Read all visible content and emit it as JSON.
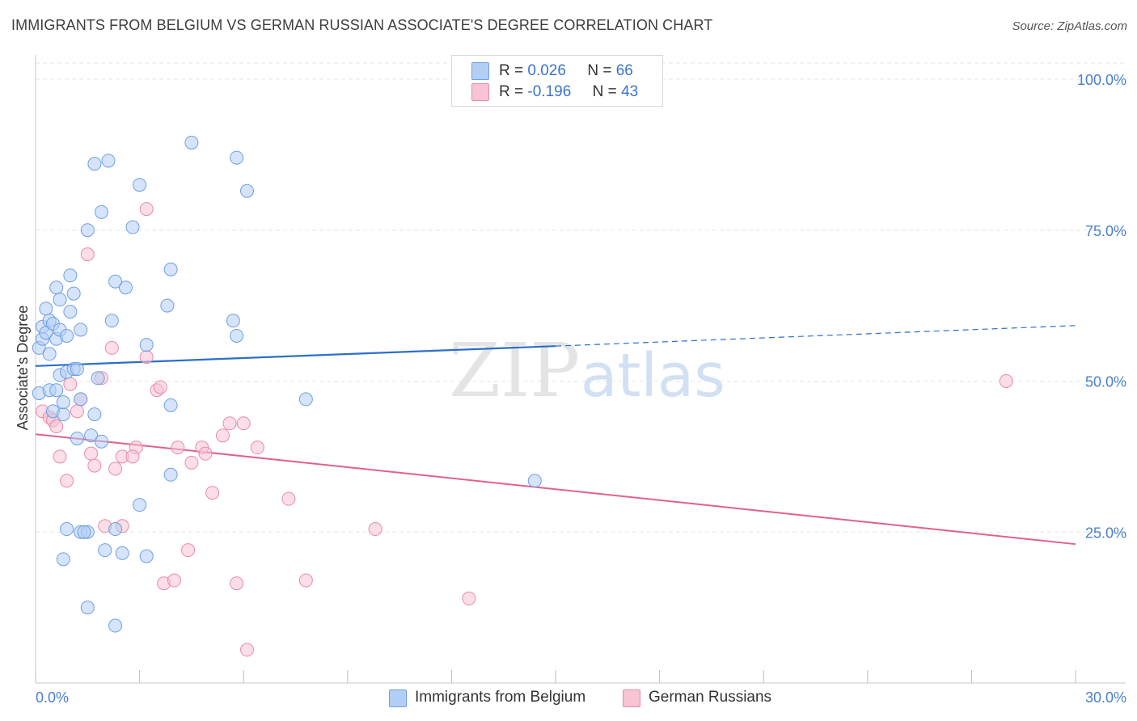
{
  "title": "IMMIGRANTS FROM BELGIUM VS GERMAN RUSSIAN ASSOCIATE'S DEGREE CORRELATION CHART",
  "source": "Source: ZipAtlas.com",
  "watermark": {
    "zip": "ZIP",
    "atlas": "atlas"
  },
  "colors": {
    "blue_fill": "#b3cef5",
    "blue_stroke": "#6f9fe0",
    "blue_line": "#2b6fc9",
    "pink_fill": "#f8c3d3",
    "pink_stroke": "#e98aa9",
    "pink_line": "#e0608f",
    "tick": "#4a7fd0"
  },
  "legend": {
    "rows": [
      {
        "r_label": "R =",
        "r_value": "0.026",
        "n_label": "N =",
        "n_value": "66"
      },
      {
        "r_label": "R =",
        "r_value": "-0.196",
        "n_label": "N =",
        "n_value": "43"
      }
    ]
  },
  "bottom_legend": {
    "blue": "Immigrants from Belgium",
    "pink": "German Russians"
  },
  "chart_data": {
    "type": "scatter",
    "title": "IMMIGRANTS FROM BELGIUM VS GERMAN RUSSIAN ASSOCIATE'S DEGREE CORRELATION CHART",
    "xlabel": "",
    "ylabel": "Associate's Degree",
    "xlim": [
      0,
      30
    ],
    "ylim": [
      0,
      105
    ],
    "x_ticks_labeled": [
      {
        "value": 0,
        "label": "0.0%"
      },
      {
        "value": 30,
        "label": "30.0%"
      }
    ],
    "x_tick_marks": [
      0,
      3,
      6,
      9,
      12,
      15,
      18,
      21,
      24,
      27,
      30
    ],
    "y_ticks": [
      {
        "value": 25,
        "label": "25.0%"
      },
      {
        "value": 50,
        "label": "50.0%"
      },
      {
        "value": 75,
        "label": "75.0%"
      },
      {
        "value": 100,
        "label": "100.0%"
      }
    ],
    "grid": true,
    "series": [
      {
        "name": "Immigrants from Belgium",
        "color": "blue",
        "R": 0.026,
        "N": 66,
        "trend": {
          "x0": 0,
          "y0": 52.5,
          "x1": 15,
          "y1": 55.8,
          "dashed_to_x": 30,
          "dashed_to_y": 59.2
        },
        "points": [
          [
            0.1,
            48.0
          ],
          [
            0.1,
            55.5
          ],
          [
            0.2,
            57.0
          ],
          [
            0.2,
            59.0
          ],
          [
            0.3,
            62.0
          ],
          [
            0.3,
            58.0
          ],
          [
            0.4,
            60.0
          ],
          [
            0.4,
            54.5
          ],
          [
            0.4,
            48.5
          ],
          [
            0.5,
            59.5
          ],
          [
            0.5,
            45.0
          ],
          [
            0.6,
            65.5
          ],
          [
            0.6,
            57.0
          ],
          [
            0.6,
            48.5
          ],
          [
            0.7,
            58.5
          ],
          [
            0.7,
            63.5
          ],
          [
            0.7,
            51.0
          ],
          [
            0.8,
            44.5
          ],
          [
            0.8,
            46.5
          ],
          [
            0.9,
            51.5
          ],
          [
            0.9,
            57.5
          ],
          [
            1.0,
            67.5
          ],
          [
            1.0,
            61.5
          ],
          [
            1.1,
            52.0
          ],
          [
            1.1,
            64.5
          ],
          [
            1.2,
            52.0
          ],
          [
            1.3,
            58.5
          ],
          [
            1.2,
            40.5
          ],
          [
            1.3,
            47.0
          ],
          [
            1.5,
            75.0
          ],
          [
            1.6,
            41.0
          ],
          [
            1.7,
            44.5
          ],
          [
            1.7,
            86.0
          ],
          [
            1.9,
            78.0
          ],
          [
            1.9,
            40.0
          ],
          [
            1.8,
            50.5
          ],
          [
            2.1,
            86.5
          ],
          [
            2.2,
            60.0
          ],
          [
            2.3,
            66.5
          ],
          [
            2.6,
            65.5
          ],
          [
            2.8,
            75.5
          ],
          [
            3.0,
            82.5
          ],
          [
            3.2,
            56.0
          ],
          [
            3.8,
            62.5
          ],
          [
            3.9,
            46.0
          ],
          [
            3.9,
            34.5
          ],
          [
            3.9,
            68.5
          ],
          [
            4.5,
            89.5
          ],
          [
            5.7,
            60.0
          ],
          [
            5.8,
            57.5
          ],
          [
            5.8,
            87.0
          ],
          [
            6.1,
            81.5
          ],
          [
            7.8,
            47.0
          ],
          [
            14.4,
            33.5
          ],
          [
            1.3,
            25.0
          ],
          [
            1.5,
            25.0
          ],
          [
            2.3,
            25.5
          ],
          [
            3.0,
            29.5
          ],
          [
            1.5,
            12.5
          ],
          [
            2.3,
            9.5
          ],
          [
            0.8,
            20.5
          ],
          [
            2.0,
            22.0
          ],
          [
            2.5,
            21.5
          ],
          [
            3.2,
            21.0
          ],
          [
            1.4,
            25.0
          ],
          [
            0.9,
            25.5
          ]
        ]
      },
      {
        "name": "German Russians",
        "color": "pink",
        "R": -0.196,
        "N": 43,
        "trend": {
          "x0": 0,
          "y0": 41.2,
          "x1": 30,
          "y1": 23.0
        },
        "points": [
          [
            0.2,
            45.0
          ],
          [
            0.4,
            44.0
          ],
          [
            0.5,
            43.5
          ],
          [
            0.6,
            42.5
          ],
          [
            0.7,
            37.5
          ],
          [
            0.9,
            33.5
          ],
          [
            1.0,
            49.5
          ],
          [
            1.2,
            45.0
          ],
          [
            1.3,
            47.0
          ],
          [
            1.5,
            71.0
          ],
          [
            1.6,
            38.0
          ],
          [
            1.7,
            36.0
          ],
          [
            1.9,
            50.5
          ],
          [
            2.0,
            26.0
          ],
          [
            2.2,
            55.5
          ],
          [
            2.3,
            35.5
          ],
          [
            2.5,
            37.5
          ],
          [
            2.9,
            39.0
          ],
          [
            2.8,
            37.5
          ],
          [
            3.2,
            54.0
          ],
          [
            3.2,
            78.5
          ],
          [
            3.5,
            48.5
          ],
          [
            3.6,
            49.0
          ],
          [
            3.7,
            16.5
          ],
          [
            4.0,
            17.0
          ],
          [
            4.1,
            39.0
          ],
          [
            4.4,
            22.0
          ],
          [
            4.5,
            36.5
          ],
          [
            4.8,
            39.0
          ],
          [
            4.9,
            38.0
          ],
          [
            5.1,
            31.5
          ],
          [
            5.4,
            41.0
          ],
          [
            5.6,
            43.0
          ],
          [
            5.8,
            16.5
          ],
          [
            6.0,
            43.0
          ],
          [
            6.1,
            5.5
          ],
          [
            6.4,
            39.0
          ],
          [
            7.3,
            30.5
          ],
          [
            7.8,
            17.0
          ],
          [
            9.8,
            25.5
          ],
          [
            12.5,
            14.0
          ],
          [
            28.0,
            50.0
          ],
          [
            2.5,
            26.0
          ]
        ]
      }
    ]
  }
}
